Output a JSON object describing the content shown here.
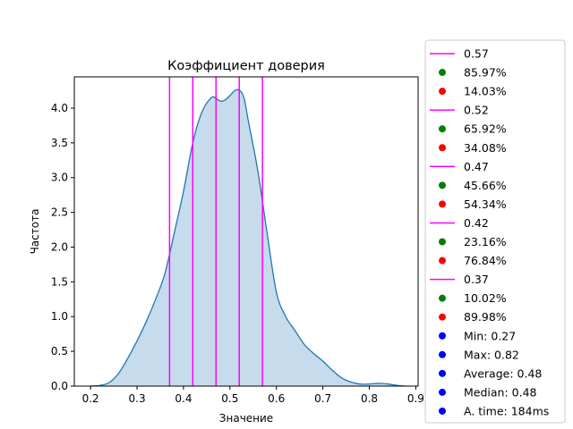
{
  "chart_data": {
    "type": "area",
    "title": "Коэффициент доверия",
    "xlabel": "Значение",
    "ylabel": "Частота",
    "xlim": [
      0.165,
      0.905
    ],
    "ylim": [
      0,
      4.45
    ],
    "xticks": [
      0.2,
      0.3,
      0.4,
      0.5,
      0.6,
      0.7,
      0.8,
      0.9
    ],
    "xtick_labels": [
      "0.2",
      "0.3",
      "0.4",
      "0.5",
      "0.6",
      "0.7",
      "0.8",
      "0.9"
    ],
    "yticks": [
      0.0,
      0.5,
      1.0,
      1.5,
      2.0,
      2.5,
      3.0,
      3.5,
      4.0
    ],
    "ytick_labels": [
      "0.0",
      "0.5",
      "1.0",
      "1.5",
      "2.0",
      "2.5",
      "3.0",
      "3.5",
      "4.0"
    ],
    "grid": false,
    "legend_position": "outside-right",
    "colors": {
      "density_line": "#1f77b4",
      "density_fill": "#c6dbeb",
      "vline": "#ff00ff",
      "green": "#008000",
      "red": "#ff0000",
      "blue": "#0000ff"
    },
    "density": {
      "x": [
        0.2,
        0.22,
        0.24,
        0.26,
        0.28,
        0.3,
        0.32,
        0.34,
        0.36,
        0.38,
        0.4,
        0.42,
        0.44,
        0.46,
        0.47,
        0.48,
        0.49,
        0.5,
        0.51,
        0.52,
        0.53,
        0.54,
        0.56,
        0.58,
        0.6,
        0.62,
        0.64,
        0.66,
        0.68,
        0.7,
        0.72,
        0.74,
        0.76,
        0.78,
        0.8,
        0.82,
        0.84,
        0.86,
        0.88
      ],
      "y": [
        0.0,
        0.01,
        0.05,
        0.18,
        0.4,
        0.65,
        0.93,
        1.25,
        1.62,
        2.2,
        2.8,
        3.5,
        3.95,
        4.15,
        4.14,
        4.1,
        4.12,
        4.18,
        4.25,
        4.26,
        4.15,
        3.8,
        3.1,
        2.2,
        1.35,
        1.0,
        0.8,
        0.6,
        0.47,
        0.36,
        0.23,
        0.12,
        0.06,
        0.03,
        0.03,
        0.04,
        0.03,
        0.01,
        0.0
      ]
    },
    "vlines": [
      0.37,
      0.42,
      0.47,
      0.52,
      0.57
    ]
  },
  "legend": [
    {
      "marker": "line",
      "color": "#ff00ff",
      "label": "0.57"
    },
    {
      "marker": "dot",
      "color": "#008000",
      "label": "85.97%"
    },
    {
      "marker": "dot",
      "color": "#ff0000",
      "label": "14.03%"
    },
    {
      "marker": "line",
      "color": "#ff00ff",
      "label": "0.52"
    },
    {
      "marker": "dot",
      "color": "#008000",
      "label": "65.92%"
    },
    {
      "marker": "dot",
      "color": "#ff0000",
      "label": "34.08%"
    },
    {
      "marker": "line",
      "color": "#ff00ff",
      "label": "0.47"
    },
    {
      "marker": "dot",
      "color": "#008000",
      "label": "45.66%"
    },
    {
      "marker": "dot",
      "color": "#ff0000",
      "label": "54.34%"
    },
    {
      "marker": "line",
      "color": "#ff00ff",
      "label": "0.42"
    },
    {
      "marker": "dot",
      "color": "#008000",
      "label": "23.16%"
    },
    {
      "marker": "dot",
      "color": "#ff0000",
      "label": "76.84%"
    },
    {
      "marker": "line",
      "color": "#ff00ff",
      "label": "0.37"
    },
    {
      "marker": "dot",
      "color": "#008000",
      "label": "10.02%"
    },
    {
      "marker": "dot",
      "color": "#ff0000",
      "label": "89.98%"
    },
    {
      "marker": "dot",
      "color": "#0000ff",
      "label": "Min: 0.27"
    },
    {
      "marker": "dot",
      "color": "#0000ff",
      "label": "Max: 0.82"
    },
    {
      "marker": "dot",
      "color": "#0000ff",
      "label": "Average: 0.48"
    },
    {
      "marker": "dot",
      "color": "#0000ff",
      "label": "Median: 0.48"
    },
    {
      "marker": "dot",
      "color": "#0000ff",
      "label": "A. time: 184ms"
    }
  ]
}
